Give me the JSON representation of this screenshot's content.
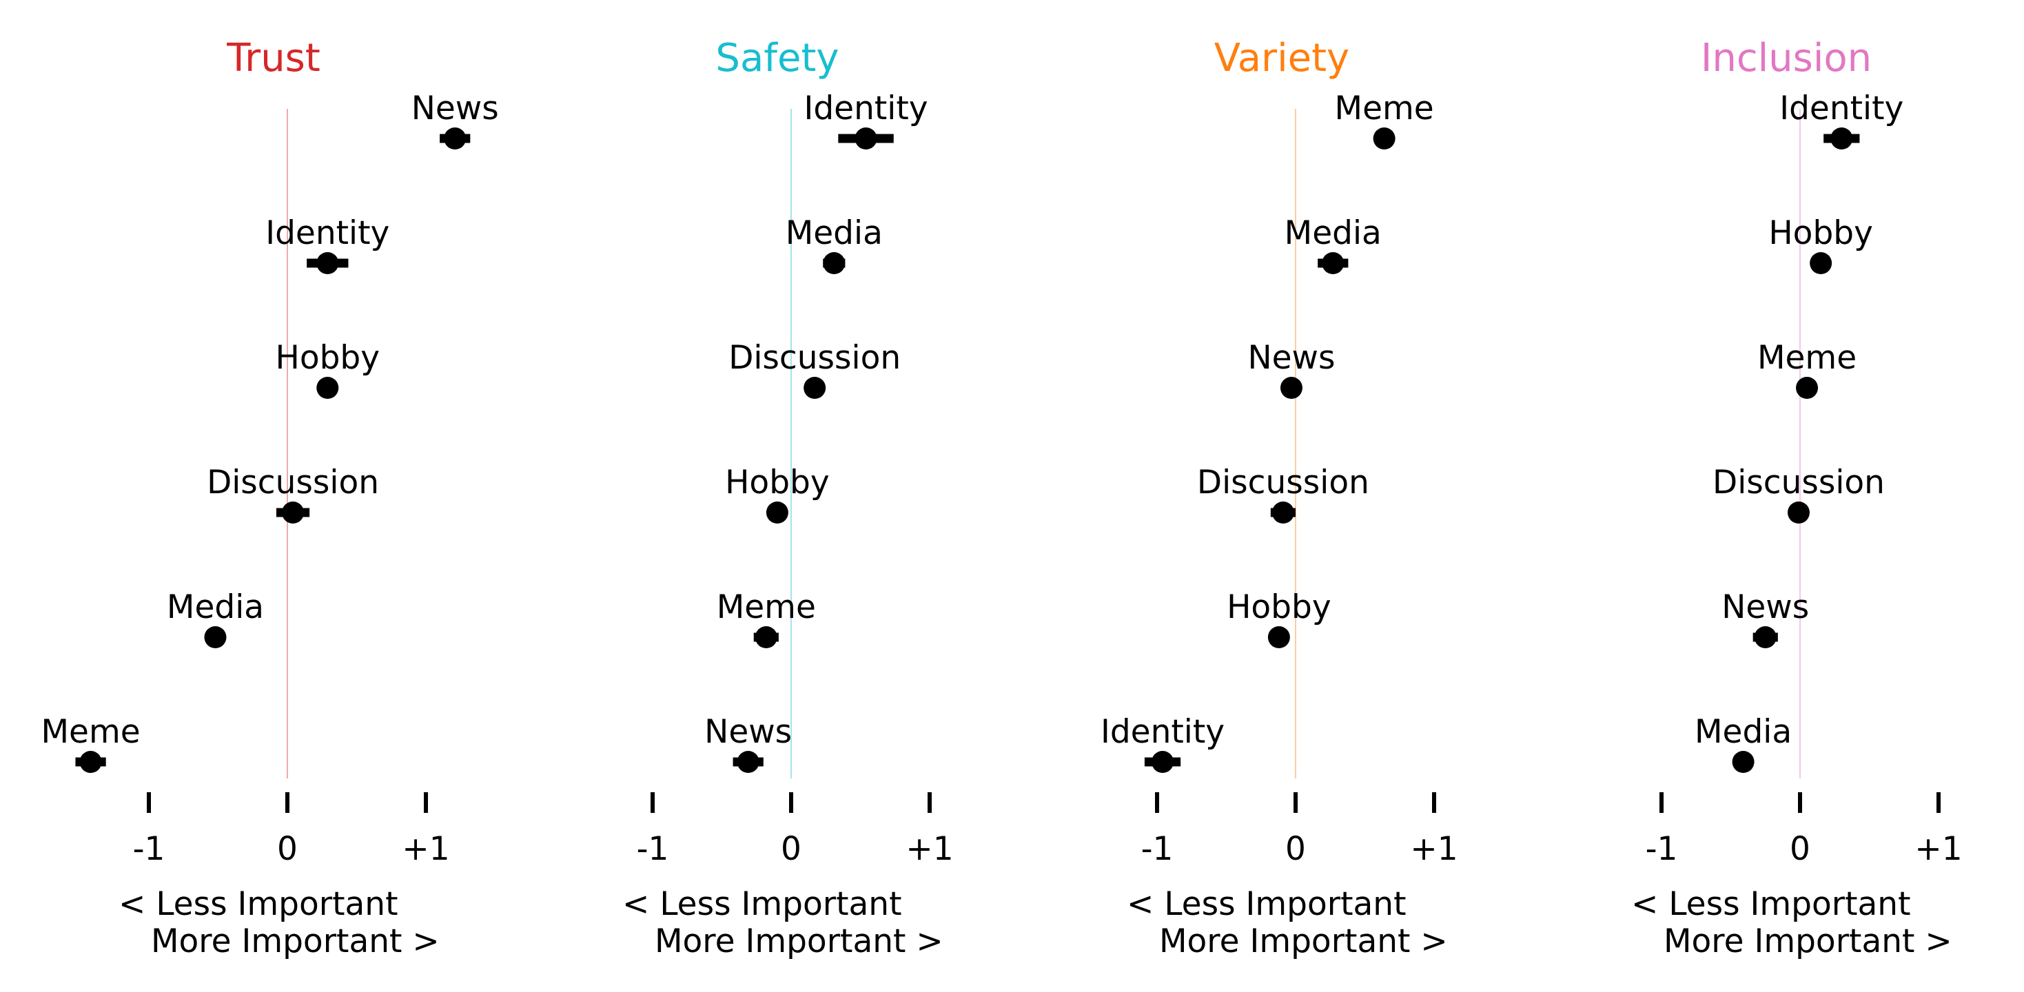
{
  "chart_data": [
    {
      "type": "scatter",
      "title": "Trust",
      "color": "#d62728",
      "categories": [
        "News",
        "Identity",
        "Hobby",
        "Discussion",
        "Media",
        "Meme"
      ],
      "values": [
        1.21,
        0.29,
        0.29,
        0.04,
        -0.52,
        -1.42
      ],
      "errors": [
        0.11,
        0.15,
        0.03,
        0.12,
        0.06,
        0.11
      ],
      "xlim": [
        -1.5,
        1.5
      ],
      "ticks": [
        "-1",
        "0",
        "+1"
      ],
      "xlabel_left": "< Less Important",
      "xlabel_right": "More Important >"
    },
    {
      "type": "scatter",
      "title": "Safety",
      "color": "#17becf",
      "categories": [
        "Identity",
        "Media",
        "Discussion",
        "Hobby",
        "Meme",
        "News"
      ],
      "values": [
        0.54,
        0.31,
        0.17,
        -0.1,
        -0.18,
        -0.31
      ],
      "errors": [
        0.2,
        0.08,
        0.05,
        0.05,
        0.09,
        0.11
      ],
      "xlim": [
        -1.5,
        1.5
      ],
      "ticks": [
        "-1",
        "0",
        "+1"
      ],
      "xlabel_left": "< Less Important",
      "xlabel_right": "More Important >"
    },
    {
      "type": "scatter",
      "title": "Variety",
      "color": "#ff7f0e",
      "categories": [
        "Meme",
        "Media",
        "News",
        "Discussion",
        "Hobby",
        "Identity"
      ],
      "values": [
        0.64,
        0.27,
        -0.03,
        -0.09,
        -0.12,
        -0.96
      ],
      "errors": [
        0.03,
        0.11,
        0.07,
        0.09,
        0.04,
        0.13
      ],
      "xlim": [
        -1.5,
        1.5
      ],
      "ticks": [
        "-1",
        "0",
        "+1"
      ],
      "xlabel_left": "< Less Important",
      "xlabel_right": "More Important >"
    },
    {
      "type": "scatter",
      "title": "Inclusion",
      "color": "#e377c2",
      "categories": [
        "Identity",
        "Hobby",
        "Meme",
        "Discussion",
        "News",
        "Media"
      ],
      "values": [
        0.3,
        0.15,
        0.05,
        -0.01,
        -0.25,
        -0.41
      ],
      "errors": [
        0.13,
        0.04,
        0.07,
        0.04,
        0.09,
        0.04
      ],
      "xlim": [
        -1.5,
        1.5
      ],
      "ticks": [
        "-1",
        "0",
        "+1"
      ],
      "xlabel_left": "< Less Important",
      "xlabel_right": "More Important >"
    }
  ]
}
